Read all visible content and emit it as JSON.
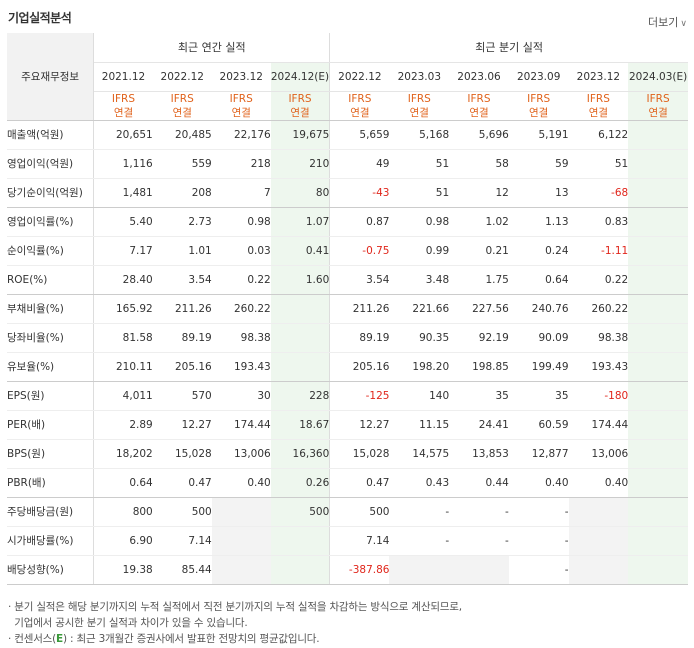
{
  "header": {
    "title": "기업실적분석",
    "more_label": "더보기",
    "more_chevron": "∨"
  },
  "table": {
    "label_header": "주요재무정보",
    "annual_group": "최근 연간 실적",
    "quarter_group": "최근 분기 실적",
    "annual_periods": [
      "2021.12",
      "2022.12",
      "2023.12",
      "2024.12(E)"
    ],
    "quarter_periods": [
      "2022.12",
      "2023.03",
      "2023.06",
      "2023.09",
      "2023.12",
      "2024.03(E)"
    ],
    "ifrs_line1": "IFRS",
    "ifrs_line2": "연결",
    "rows": [
      {
        "label": "매출액(억원)",
        "annual": [
          "20,651",
          "20,485",
          "22,176",
          "19,675"
        ],
        "quarter": [
          "5,659",
          "5,168",
          "5,696",
          "5,191",
          "6,122",
          ""
        ]
      },
      {
        "label": "영업이익(억원)",
        "annual": [
          "1,116",
          "559",
          "218",
          "210"
        ],
        "quarter": [
          "49",
          "51",
          "58",
          "59",
          "51",
          ""
        ]
      },
      {
        "label": "당기순이익(억원)",
        "annual": [
          "1,481",
          "208",
          "7",
          "80"
        ],
        "quarter": [
          "-43",
          "51",
          "12",
          "13",
          "-68",
          ""
        ]
      },
      {
        "label": "영업이익률(%)",
        "annual": [
          "5.40",
          "2.73",
          "0.98",
          "1.07"
        ],
        "quarter": [
          "0.87",
          "0.98",
          "1.02",
          "1.13",
          "0.83",
          ""
        ]
      },
      {
        "label": "순이익률(%)",
        "annual": [
          "7.17",
          "1.01",
          "0.03",
          "0.41"
        ],
        "quarter": [
          "-0.75",
          "0.99",
          "0.21",
          "0.24",
          "-1.11",
          ""
        ]
      },
      {
        "label": "ROE(%)",
        "annual": [
          "28.40",
          "3.54",
          "0.22",
          "1.60"
        ],
        "quarter": [
          "3.54",
          "3.48",
          "1.75",
          "0.64",
          "0.22",
          ""
        ]
      },
      {
        "label": "부채비율(%)",
        "annual": [
          "165.92",
          "211.26",
          "260.22",
          ""
        ],
        "quarter": [
          "211.26",
          "221.66",
          "227.56",
          "240.76",
          "260.22",
          ""
        ]
      },
      {
        "label": "당좌비율(%)",
        "annual": [
          "81.58",
          "89.19",
          "98.38",
          ""
        ],
        "quarter": [
          "89.19",
          "90.35",
          "92.19",
          "90.09",
          "98.38",
          ""
        ]
      },
      {
        "label": "유보율(%)",
        "annual": [
          "210.11",
          "205.16",
          "193.43",
          ""
        ],
        "quarter": [
          "205.16",
          "198.20",
          "198.85",
          "199.49",
          "193.43",
          ""
        ]
      },
      {
        "label": "EPS(원)",
        "annual": [
          "4,011",
          "570",
          "30",
          "228"
        ],
        "quarter": [
          "-125",
          "140",
          "35",
          "35",
          "-180",
          ""
        ]
      },
      {
        "label": "PER(배)",
        "annual": [
          "2.89",
          "12.27",
          "174.44",
          "18.67"
        ],
        "quarter": [
          "12.27",
          "11.15",
          "24.41",
          "60.59",
          "174.44",
          ""
        ]
      },
      {
        "label": "BPS(원)",
        "annual": [
          "18,202",
          "15,028",
          "13,006",
          "16,360"
        ],
        "quarter": [
          "15,028",
          "14,575",
          "13,853",
          "12,877",
          "13,006",
          ""
        ]
      },
      {
        "label": "PBR(배)",
        "annual": [
          "0.64",
          "0.47",
          "0.40",
          "0.26"
        ],
        "quarter": [
          "0.47",
          "0.43",
          "0.44",
          "0.40",
          "0.40",
          ""
        ]
      },
      {
        "label": "주당배당금(원)",
        "annual": [
          "800",
          "500",
          "",
          "500"
        ],
        "quarter": [
          "500",
          "-",
          "-",
          "-",
          "",
          ""
        ]
      },
      {
        "label": "시가배당률(%)",
        "annual": [
          "6.90",
          "7.14",
          "",
          ""
        ],
        "quarter": [
          "7.14",
          "-",
          "-",
          "-",
          "",
          ""
        ]
      },
      {
        "label": "배당성향(%)",
        "annual": [
          "19.38",
          "85.44",
          "",
          ""
        ],
        "quarter": [
          "-387.86",
          "",
          "",
          "-",
          "",
          ""
        ]
      }
    ]
  },
  "notes": {
    "line1": "· 분기 실적은 해당 분기까지의 누적 실적에서 직전 분기까지의 누적 실적을 차감하는 방식으로 계산되므로,",
    "line2": "  기업에서 공시한 분기 실적과 차이가 있을 수 있습니다.",
    "line3_prefix": "· 컨센서스(",
    "line3_e": "E",
    "line3_suffix": ") : 최근 3개월간 증권사에서 발표한 전망치의 평균값입니다."
  },
  "colors": {
    "negative": "#e0261b",
    "ifrs": "#e0621b",
    "estimate_bg": "#eef7ee",
    "empty_bg": "#f3f3f3"
  }
}
